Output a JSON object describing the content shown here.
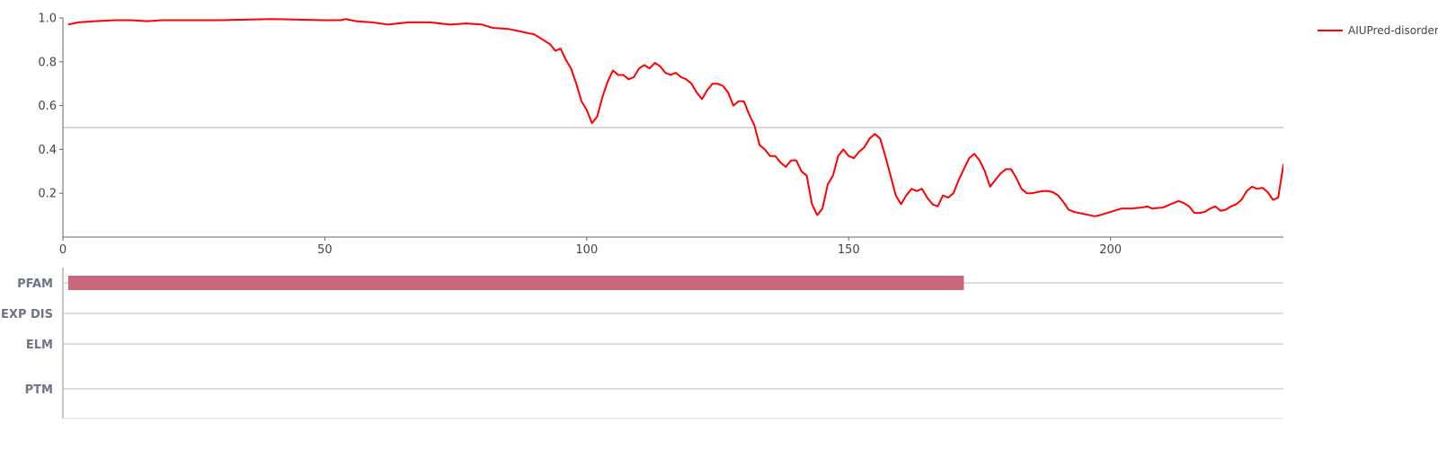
{
  "chart_data": [
    {
      "type": "line",
      "title": "",
      "xlabel": "",
      "ylabel": "",
      "xlim": [
        0,
        233
      ],
      "ylim": [
        0,
        1.0
      ],
      "x_ticks": [
        0,
        50,
        100,
        150,
        200
      ],
      "y_ticks": [
        0.2,
        0.4,
        0.6,
        0.8,
        1.0
      ],
      "y_tick_labels": [
        "0.2",
        "0.4",
        "0.6",
        "0.8",
        "1.0"
      ],
      "grid": false,
      "threshold": 0.5,
      "legend_position": "top-right",
      "series": [
        {
          "name": "AIUPred-disorder",
          "color": "#ff0000",
          "points": [
            [
              1,
              0.97
            ],
            [
              3,
              0.98
            ],
            [
              6,
              0.985
            ],
            [
              10,
              0.99
            ],
            [
              13,
              0.99
            ],
            [
              16,
              0.985
            ],
            [
              19,
              0.99
            ],
            [
              25,
              0.99
            ],
            [
              30,
              0.99
            ],
            [
              40,
              0.995
            ],
            [
              50,
              0.99
            ],
            [
              53,
              0.99
            ],
            [
              54,
              0.995
            ],
            [
              56,
              0.985
            ],
            [
              59,
              0.98
            ],
            [
              62,
              0.97
            ],
            [
              64,
              0.975
            ],
            [
              66,
              0.98
            ],
            [
              70,
              0.98
            ],
            [
              74,
              0.97
            ],
            [
              77,
              0.975
            ],
            [
              80,
              0.97
            ],
            [
              82,
              0.955
            ],
            [
              85,
              0.95
            ],
            [
              87,
              0.94
            ],
            [
              90,
              0.925
            ],
            [
              91,
              0.91
            ],
            [
              93,
              0.88
            ],
            [
              94,
              0.85
            ],
            [
              95,
              0.86
            ],
            [
              96,
              0.81
            ],
            [
              97,
              0.77
            ],
            [
              98,
              0.7
            ],
            [
              99,
              0.62
            ],
            [
              100,
              0.58
            ],
            [
              101,
              0.52
            ],
            [
              102,
              0.55
            ],
            [
              103,
              0.64
            ],
            [
              104,
              0.71
            ],
            [
              105,
              0.76
            ],
            [
              106,
              0.74
            ],
            [
              107,
              0.74
            ],
            [
              108,
              0.72
            ],
            [
              109,
              0.73
            ],
            [
              110,
              0.77
            ],
            [
              111,
              0.785
            ],
            [
              112,
              0.77
            ],
            [
              113,
              0.795
            ],
            [
              114,
              0.78
            ],
            [
              115,
              0.75
            ],
            [
              116,
              0.74
            ],
            [
              117,
              0.75
            ],
            [
              118,
              0.73
            ],
            [
              119,
              0.72
            ],
            [
              120,
              0.7
            ],
            [
              121,
              0.66
            ],
            [
              122,
              0.63
            ],
            [
              123,
              0.67
            ],
            [
              124,
              0.7
            ],
            [
              125,
              0.7
            ],
            [
              126,
              0.69
            ],
            [
              127,
              0.66
            ],
            [
              128,
              0.6
            ],
            [
              129,
              0.62
            ],
            [
              130,
              0.62
            ],
            [
              131,
              0.56
            ],
            [
              132,
              0.51
            ],
            [
              133,
              0.42
            ],
            [
              134,
              0.4
            ],
            [
              135,
              0.37
            ],
            [
              136,
              0.37
            ],
            [
              137,
              0.34
            ],
            [
              138,
              0.32
            ],
            [
              139,
              0.35
            ],
            [
              140,
              0.35
            ],
            [
              141,
              0.3
            ],
            [
              142,
              0.28
            ],
            [
              143,
              0.15
            ],
            [
              144,
              0.1
            ],
            [
              145,
              0.13
            ],
            [
              146,
              0.24
            ],
            [
              147,
              0.28
            ],
            [
              148,
              0.37
            ],
            [
              149,
              0.4
            ],
            [
              150,
              0.37
            ],
            [
              151,
              0.36
            ],
            [
              152,
              0.39
            ],
            [
              153,
              0.41
            ],
            [
              154,
              0.45
            ],
            [
              155,
              0.47
            ],
            [
              156,
              0.45
            ],
            [
              157,
              0.37
            ],
            [
              158,
              0.28
            ],
            [
              159,
              0.19
            ],
            [
              160,
              0.15
            ],
            [
              161,
              0.19
            ],
            [
              162,
              0.22
            ],
            [
              163,
              0.21
            ],
            [
              164,
              0.22
            ],
            [
              165,
              0.18
            ],
            [
              166,
              0.15
            ],
            [
              167,
              0.14
            ],
            [
              168,
              0.19
            ],
            [
              169,
              0.18
            ],
            [
              170,
              0.2
            ],
            [
              171,
              0.26
            ],
            [
              172,
              0.31
            ],
            [
              173,
              0.36
            ],
            [
              174,
              0.38
            ],
            [
              175,
              0.35
            ],
            [
              176,
              0.3
            ],
            [
              177,
              0.23
            ],
            [
              178,
              0.26
            ],
            [
              179,
              0.29
            ],
            [
              180,
              0.31
            ],
            [
              181,
              0.31
            ],
            [
              182,
              0.27
            ],
            [
              183,
              0.22
            ],
            [
              184,
              0.2
            ],
            [
              185,
              0.2
            ],
            [
              186,
              0.205
            ],
            [
              187,
              0.21
            ],
            [
              188,
              0.21
            ],
            [
              189,
              0.205
            ],
            [
              190,
              0.19
            ],
            [
              191,
              0.16
            ],
            [
              192,
              0.125
            ],
            [
              193,
              0.115
            ],
            [
              195,
              0.105
            ],
            [
              197,
              0.095
            ],
            [
              198,
              0.1
            ],
            [
              200,
              0.115
            ],
            [
              202,
              0.13
            ],
            [
              204,
              0.13
            ],
            [
              206,
              0.135
            ],
            [
              207,
              0.14
            ],
            [
              208,
              0.13
            ],
            [
              210,
              0.135
            ],
            [
              212,
              0.155
            ],
            [
              213,
              0.165
            ],
            [
              214,
              0.155
            ],
            [
              215,
              0.14
            ],
            [
              216,
              0.11
            ],
            [
              217,
              0.11
            ],
            [
              218,
              0.115
            ],
            [
              219,
              0.13
            ],
            [
              220,
              0.14
            ],
            [
              221,
              0.12
            ],
            [
              222,
              0.125
            ],
            [
              223,
              0.14
            ],
            [
              224,
              0.15
            ],
            [
              225,
              0.17
            ],
            [
              226,
              0.21
            ],
            [
              227,
              0.23
            ],
            [
              228,
              0.22
            ],
            [
              229,
              0.225
            ],
            [
              230,
              0.205
            ],
            [
              231,
              0.17
            ],
            [
              232,
              0.18
            ],
            [
              233,
              0.33
            ],
            [
              234,
              0.31
            ]
          ]
        }
      ]
    },
    {
      "type": "track",
      "xlim": [
        0,
        233
      ],
      "tracks": [
        {
          "label": "PFAM",
          "features": [
            {
              "start": 1,
              "end": 172,
              "color": "#c9677a"
            }
          ]
        },
        {
          "label": "EXP DIS",
          "features": []
        },
        {
          "label": "ELM",
          "features": []
        },
        {
          "label": "PTM",
          "features": []
        }
      ]
    }
  ]
}
